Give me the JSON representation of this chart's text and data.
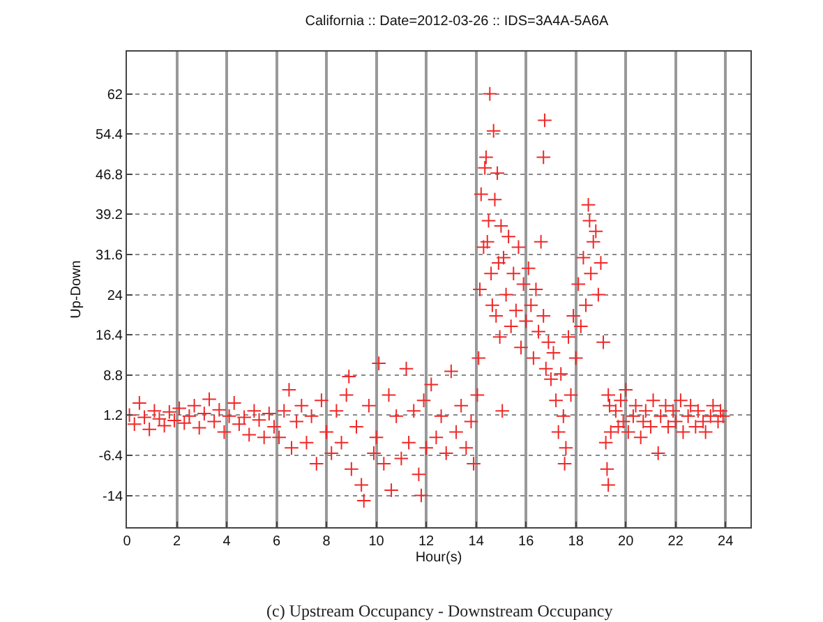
{
  "chart_data": {
    "type": "scatter",
    "title": "California :: Date=2012-03-26 :: IDS=3A4A-5A6A",
    "xlabel": "Hour(s)",
    "ylabel": "Up-Down",
    "annotations": [
      "(c) Upstream Occupancy - Downstream Occupancy"
    ],
    "xlim": [
      0,
      25
    ],
    "xticks": [
      0,
      2,
      4,
      6,
      8,
      10,
      12,
      14,
      16,
      18,
      20,
      22,
      24
    ],
    "ylim": [
      -20,
      70
    ],
    "yticks": [
      -14,
      -6.4,
      1.2,
      8.8,
      16.4,
      24,
      31.6,
      39.2,
      46.8,
      54.4,
      62
    ],
    "grid": true,
    "marker": "cross",
    "series": [
      {
        "color": "#f02828",
        "x": [
          0.1,
          0.3,
          0.5,
          0.7,
          0.9,
          1.1,
          1.3,
          1.5,
          1.7,
          1.9,
          2.1,
          2.3,
          2.5,
          2.7,
          2.9,
          3.1,
          3.3,
          3.5,
          3.7,
          3.9,
          4.1,
          4.3,
          4.5,
          4.7,
          4.9,
          5.1,
          5.3,
          5.5,
          5.7,
          5.9,
          6.1,
          6.3,
          6.5,
          6.6,
          6.8,
          7.0,
          7.2,
          7.4,
          7.6,
          7.8,
          8.0,
          8.2,
          8.4,
          8.6,
          8.8,
          8.9,
          9.0,
          9.2,
          9.4,
          9.5,
          9.7,
          9.9,
          10.0,
          10.1,
          10.3,
          10.5,
          10.6,
          10.8,
          11.0,
          11.2,
          11.3,
          11.5,
          11.7,
          11.8,
          11.9,
          12.0,
          12.2,
          12.4,
          12.6,
          12.8,
          13.0,
          13.2,
          13.4,
          13.6,
          13.8,
          13.9,
          14.05,
          14.1,
          14.15,
          14.2,
          14.3,
          14.35,
          14.4,
          14.45,
          14.5,
          14.55,
          14.6,
          14.65,
          14.7,
          14.75,
          14.8,
          14.85,
          14.9,
          14.95,
          15.0,
          15.05,
          15.1,
          15.2,
          15.3,
          15.4,
          15.5,
          15.6,
          15.7,
          15.8,
          15.9,
          16.0,
          16.1,
          16.2,
          16.3,
          16.4,
          16.5,
          16.6,
          16.7,
          16.7,
          16.75,
          16.8,
          16.9,
          17.0,
          17.1,
          17.2,
          17.3,
          17.4,
          17.5,
          17.55,
          17.6,
          17.7,
          17.8,
          17.9,
          18.0,
          18.1,
          18.2,
          18.3,
          18.4,
          18.5,
          18.55,
          18.6,
          18.7,
          18.8,
          18.9,
          19.0,
          19.1,
          19.2,
          19.25,
          19.3,
          19.3,
          19.35,
          19.4,
          19.6,
          19.7,
          19.8,
          19.9,
          20.0,
          20.1,
          20.3,
          20.4,
          20.6,
          20.7,
          20.8,
          21.0,
          21.1,
          21.3,
          21.4,
          21.6,
          21.7,
          21.9,
          22.0,
          22.2,
          22.3,
          22.5,
          22.6,
          22.8,
          22.9,
          23.1,
          23.2,
          23.4,
          23.5,
          23.7,
          23.8,
          23.9
        ],
        "values": [
          1.2,
          -0.5,
          3.5,
          0.8,
          -1.5,
          2.0,
          0.5,
          -0.8,
          1.8,
          0.2,
          2.5,
          -0.3,
          1.0,
          3.0,
          -1.2,
          1.5,
          4.2,
          0.0,
          2.2,
          -2.0,
          1.0,
          3.5,
          -0.5,
          0.8,
          -2.5,
          2.0,
          0.3,
          -3.0,
          1.5,
          -1.0,
          -3,
          2,
          6,
          -5,
          0,
          3,
          -4,
          1,
          -8,
          4,
          -2,
          -6,
          2,
          -4,
          5,
          8.5,
          -9,
          -1,
          -12,
          -15,
          3,
          -6,
          -3,
          11,
          -8,
          5,
          -13,
          1,
          -7,
          10,
          -4,
          2,
          -10,
          -14,
          4,
          -5,
          7,
          -3,
          1,
          -6,
          9.5,
          -2,
          3,
          -5,
          0,
          -8,
          5,
          12,
          25,
          43,
          33,
          48,
          50,
          34,
          38,
          62,
          28,
          22,
          55,
          42,
          20,
          47,
          30,
          16,
          37,
          2,
          31,
          24,
          35,
          18,
          28,
          21,
          33,
          14,
          26,
          19,
          29,
          22,
          12,
          25,
          17,
          34,
          20,
          50,
          57,
          10,
          15,
          8,
          13,
          4,
          -2,
          9,
          1,
          -8,
          -5,
          16,
          5,
          20,
          12,
          26,
          18,
          31,
          22,
          41,
          38,
          28,
          34,
          36,
          24,
          30,
          15,
          -4,
          -9,
          -12,
          5,
          3,
          -2,
          2,
          -1,
          4,
          0,
          6,
          -2,
          1,
          3,
          -3,
          0,
          2,
          -1,
          4,
          -6,
          1,
          3,
          -1,
          2,
          0,
          4,
          -2,
          1,
          3,
          -1,
          2,
          0,
          -2,
          1,
          3,
          0,
          2,
          1
        ]
      }
    ]
  }
}
